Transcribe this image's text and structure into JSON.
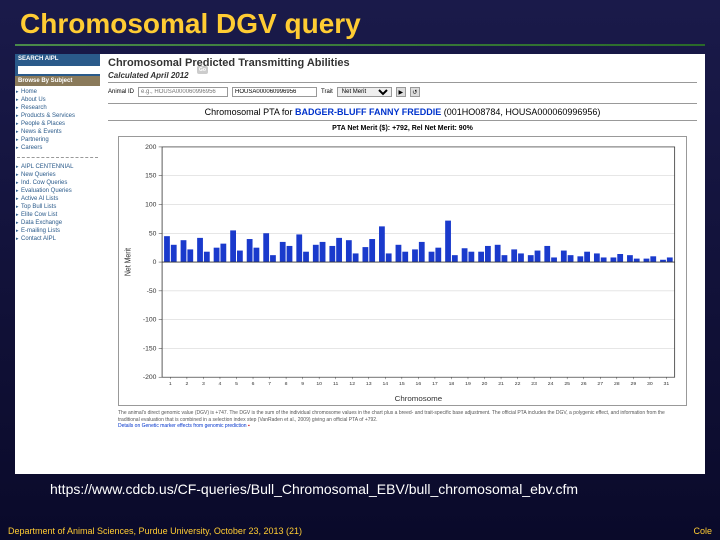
{
  "slide": {
    "title": "Chromosomal DGV query",
    "url": "https://www.cdcb.us/CF-queries/Bull_Chromosomal_EBV/bull_chromosomal_ebv.cfm",
    "footer_left": "Department of Animal Sciences, Purdue University, October 23, 2013 (21)",
    "footer_right": "Cole"
  },
  "sidebar": {
    "search_label": "SEARCH AIPL",
    "go_label": "Go",
    "browse_label": "Browse By Subject",
    "nav1": [
      "Home",
      "About Us",
      "Research",
      "Products & Services",
      "People & Places",
      "News & Events",
      "Partnering",
      "Careers"
    ],
    "nav2": [
      "AIPL CENTENNIAL",
      "New Queries",
      "Ind. Cow Queries",
      "Evaluation Queries",
      "Active AI Lists",
      "Top Bull Lists",
      "Elite Cow List",
      "Data Exchange",
      "E-mailing Lists",
      "Contact AIPL"
    ]
  },
  "page": {
    "heading": "Chromosomal Predicted Transmitting Abilities",
    "calc": "Calculated April 2012",
    "animal_label": "Animal ID",
    "animal_placeholder": "e.g., HOUSA000060996956",
    "animal_value": "HOUSA000060996956",
    "trait_label": "Trait",
    "trait_value": "Net Merit",
    "chart_title_prefix": "Chromosomal PTA for ",
    "chart_title_name": "BADGER-BLUFF FANNY FREDDIE",
    "chart_title_suffix": " (001HO08784, HOUSA000060996956)",
    "pta_label": "PTA Net Merit ($): ",
    "pta_value": "+792, ",
    "rel_label": "Rel Net Merit: ",
    "rel_value": "90%",
    "ylabel": "Net Merit",
    "xlabel": "Chromosome",
    "footer_note": "The animal's direct genomic value (DGV) is +747. The DGV is the sum of the individual chromosome values in the chart plus a breed- and trait-specific base adjustment. The official PTA includes the DGV, a polygenic effect, and information from the traditional evaluation that is combined in a selection index step (VanRaden et al., 2009) giving an official PTA of +792.",
    "footer_link": "Details on Genetic marker effects from genomic prediction"
  },
  "chart": {
    "type": "bar",
    "ylim": [
      -200,
      200
    ],
    "yticks": [
      -200,
      -150,
      -100,
      -50,
      0,
      50,
      100,
      150,
      200
    ],
    "xticks_minor": [
      1,
      2,
      3,
      4,
      5,
      6,
      7,
      8,
      9,
      10,
      11,
      12,
      13,
      14,
      15,
      16,
      17,
      18,
      19,
      20,
      21,
      22,
      23,
      24,
      25,
      26,
      27,
      28,
      29,
      30,
      31
    ],
    "xticks_major": [
      5,
      10,
      15,
      20,
      25,
      30
    ],
    "pairs": 31,
    "bar_color_a": "#1a3acc",
    "bar_color_b": "#1a3acc",
    "grid_color": "#cccccc",
    "axis_color": "#333333",
    "values_a": [
      45,
      38,
      42,
      25,
      55,
      40,
      50,
      35,
      48,
      30,
      28,
      38,
      26,
      62,
      30,
      22,
      18,
      72,
      24,
      18,
      30,
      22,
      12,
      28,
      20,
      10,
      15,
      8,
      12,
      6,
      4
    ],
    "values_b": [
      30,
      22,
      18,
      32,
      20,
      25,
      12,
      28,
      18,
      35,
      42,
      15,
      40,
      15,
      18,
      35,
      25,
      12,
      18,
      28,
      12,
      15,
      20,
      8,
      12,
      18,
      8,
      14,
      6,
      10,
      8
    ]
  }
}
